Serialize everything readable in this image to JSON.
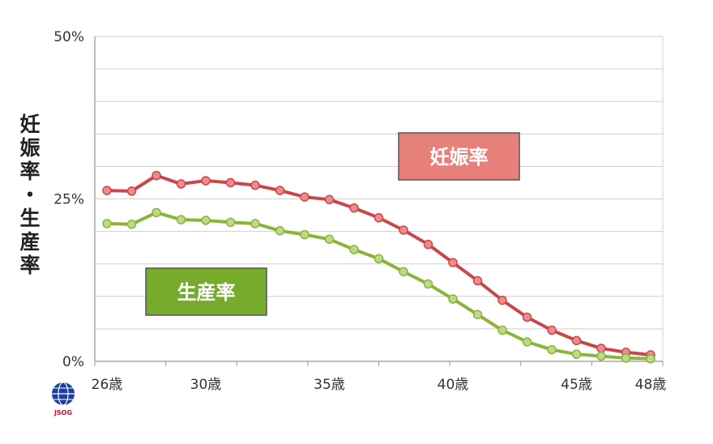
{
  "chart_data": {
    "type": "line",
    "x": [
      26,
      27,
      28,
      29,
      30,
      31,
      32,
      33,
      34,
      35,
      36,
      37,
      38,
      39,
      40,
      41,
      42,
      43,
      44,
      45,
      46,
      47,
      48
    ],
    "x_tick_labels": [
      "26歳",
      "30歳",
      "35歳",
      "40歳",
      "45歳",
      "48歳"
    ],
    "x_tick_values": [
      26,
      30,
      35,
      40,
      45,
      48
    ],
    "y_tick_labels": [
      "0%",
      "25%",
      "50%"
    ],
    "y_tick_values": [
      0,
      25,
      50
    ],
    "ylim": [
      0,
      50
    ],
    "ylabel": "妊娠率・生産率",
    "grid": true,
    "series": [
      {
        "name": "妊娠率",
        "color": "#c8474b",
        "marker_color": "#f08a8c",
        "label_box_color": "#e8807a",
        "values": [
          26.3,
          26.2,
          28.6,
          27.3,
          27.8,
          27.5,
          27.1,
          26.3,
          25.3,
          24.9,
          23.6,
          22.1,
          20.2,
          18.0,
          15.2,
          12.4,
          9.4,
          6.8,
          4.8,
          3.2,
          2.0,
          1.4,
          1.0
        ]
      },
      {
        "name": "生産率",
        "color": "#8cb33a",
        "marker_color": "#b8dc88",
        "label_box_color": "#76ab2c",
        "values": [
          21.2,
          21.1,
          22.9,
          21.8,
          21.7,
          21.4,
          21.2,
          20.1,
          19.5,
          18.8,
          17.2,
          15.8,
          13.8,
          11.9,
          9.6,
          7.2,
          4.8,
          3.0,
          1.8,
          1.1,
          0.8,
          0.5,
          0.4
        ]
      }
    ]
  },
  "logo": {
    "text": "JSOG",
    "color": "#1a3fa0",
    "accent": "#c8102e"
  }
}
